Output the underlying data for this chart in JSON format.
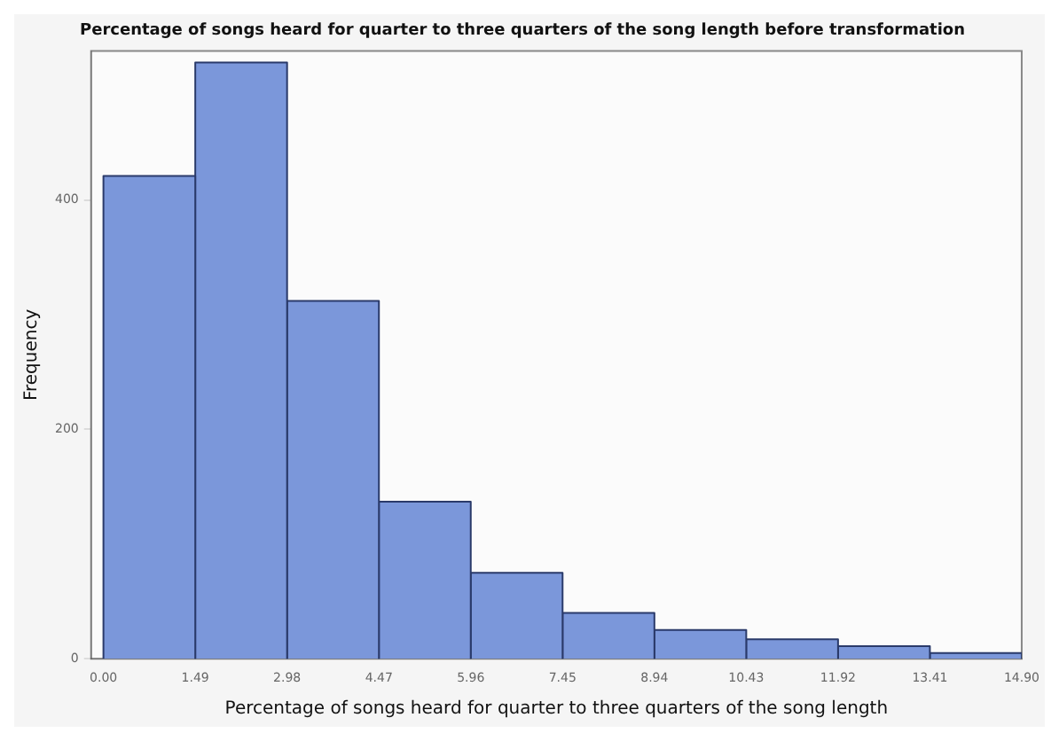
{
  "chart_data": {
    "type": "histogram",
    "title": "Percentage of songs heard for quarter to three quarters of the song length before transformation",
    "xlabel": "Percentage of songs heard for quarter to three quarters of the song length",
    "ylabel": "Frequency",
    "bins": [
      0.0,
      1.49,
      2.98,
      4.47,
      5.96,
      7.45,
      8.94,
      10.43,
      11.92,
      13.41,
      14.9
    ],
    "values": [
      421,
      520,
      312,
      137,
      75,
      40,
      25,
      17,
      11,
      5
    ],
    "color": "#7b97da",
    "xlim": [
      -0.2,
      14.9
    ],
    "xticks": [
      {
        "value": 0,
        "label": "0.00"
      },
      1.49,
      2.98,
      4.47,
      5.96,
      7.45,
      8.94,
      10.43,
      11.92,
      13.41,
      {
        "value": 14.9,
        "label": "14.90"
      }
    ],
    "ylim": [
      0,
      530
    ],
    "yticks": [
      0,
      200,
      400
    ],
    "grid": false
  }
}
